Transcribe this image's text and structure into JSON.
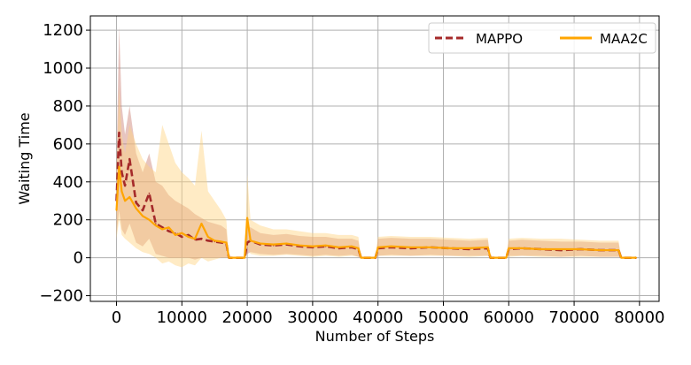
{
  "chart_data": {
    "type": "line",
    "title": "",
    "xlabel": "Number of Steps",
    "ylabel": "Waiting Time",
    "xlim": [
      -4000,
      83000
    ],
    "ylim": [
      -230,
      1275
    ],
    "x_ticks": [
      0,
      10000,
      20000,
      30000,
      40000,
      50000,
      60000,
      70000,
      80000
    ],
    "x_tick_labels": [
      "0",
      "10000",
      "20000",
      "30000",
      "40000",
      "50000",
      "60000",
      "70000",
      "80000"
    ],
    "y_ticks": [
      -200,
      0,
      200,
      400,
      600,
      800,
      1000,
      1200
    ],
    "y_tick_labels": [
      "−200",
      "0",
      "200",
      "400",
      "600",
      "800",
      "1000",
      "1200"
    ],
    "grid": true,
    "legend_position": "top-right",
    "legend_columns": 2,
    "series": [
      {
        "name": "MAPPO",
        "color": "#a52a2a",
        "band_color": "#c97f73",
        "style": "dashed",
        "x": [
          0,
          400,
          800,
          1300,
          2000,
          3000,
          4000,
          5000,
          6000,
          7000,
          8000,
          9000,
          10000,
          11000,
          12000,
          13000,
          14000,
          15000,
          16000,
          16800,
          17200,
          19600,
          20000,
          20500,
          22000,
          24000,
          26000,
          28000,
          30000,
          32000,
          34000,
          36000,
          37000,
          37400,
          39600,
          40000,
          42000,
          45000,
          48000,
          51000,
          54000,
          56800,
          57200,
          59600,
          60000,
          62000,
          65000,
          68000,
          71000,
          74000,
          76800,
          77200,
          79500
        ],
        "y": [
          300,
          660,
          450,
          380,
          520,
          290,
          250,
          340,
          180,
          160,
          140,
          130,
          110,
          120,
          95,
          100,
          90,
          85,
          80,
          75,
          0,
          0,
          80,
          90,
          70,
          65,
          70,
          60,
          55,
          60,
          50,
          55,
          45,
          0,
          0,
          50,
          55,
          50,
          55,
          50,
          45,
          50,
          0,
          0,
          45,
          50,
          45,
          40,
          45,
          40,
          40,
          0,
          0
        ],
        "upper": [
          500,
          1220,
          800,
          650,
          800,
          550,
          450,
          550,
          400,
          380,
          330,
          300,
          280,
          260,
          230,
          210,
          190,
          180,
          170,
          150,
          0,
          0,
          160,
          160,
          130,
          120,
          125,
          115,
          110,
          110,
          100,
          100,
          90,
          0,
          0,
          100,
          105,
          100,
          100,
          95,
          90,
          95,
          0,
          0,
          90,
          95,
          90,
          85,
          85,
          80,
          80,
          0,
          0
        ],
        "lower": [
          120,
          250,
          150,
          120,
          180,
          80,
          60,
          100,
          20,
          10,
          0,
          0,
          0,
          0,
          -10,
          0,
          0,
          0,
          0,
          0,
          0,
          0,
          20,
          30,
          20,
          15,
          20,
          15,
          10,
          15,
          10,
          15,
          5,
          0,
          0,
          10,
          15,
          10,
          15,
          10,
          10,
          10,
          0,
          0,
          10,
          10,
          10,
          5,
          10,
          5,
          5,
          0,
          0
        ]
      },
      {
        "name": "MAA2C",
        "color": "#ffa500",
        "band_color": "#ffd27f",
        "style": "solid",
        "x": [
          0,
          400,
          800,
          1300,
          2000,
          3000,
          4000,
          5000,
          6000,
          7000,
          8000,
          9000,
          10000,
          11000,
          12000,
          13000,
          14000,
          15000,
          16000,
          16800,
          17200,
          19600,
          20000,
          20500,
          22000,
          24000,
          26000,
          28000,
          30000,
          32000,
          34000,
          36000,
          37000,
          37400,
          39600,
          40000,
          42000,
          45000,
          48000,
          51000,
          54000,
          56800,
          57200,
          59600,
          60000,
          62000,
          65000,
          68000,
          71000,
          74000,
          76800,
          77200,
          79500
        ],
        "y": [
          250,
          480,
          350,
          300,
          320,
          260,
          220,
          200,
          170,
          150,
          160,
          120,
          130,
          110,
          100,
          180,
          110,
          90,
          85,
          80,
          0,
          0,
          210,
          90,
          75,
          70,
          75,
          65,
          60,
          65,
          55,
          60,
          50,
          0,
          0,
          55,
          60,
          55,
          55,
          50,
          50,
          55,
          0,
          0,
          50,
          50,
          45,
          45,
          45,
          40,
          40,
          0,
          0
        ],
        "upper": [
          450,
          900,
          650,
          550,
          700,
          600,
          520,
          480,
          450,
          700,
          600,
          500,
          450,
          420,
          380,
          670,
          350,
          300,
          250,
          200,
          0,
          0,
          440,
          200,
          170,
          150,
          150,
          140,
          130,
          130,
          120,
          120,
          110,
          0,
          0,
          110,
          115,
          110,
          110,
          105,
          100,
          105,
          0,
          0,
          100,
          105,
          100,
          100,
          95,
          90,
          90,
          0,
          0
        ],
        "lower": [
          100,
          200,
          120,
          100,
          80,
          50,
          30,
          20,
          0,
          -30,
          -20,
          -40,
          -50,
          -30,
          -40,
          0,
          -20,
          -10,
          0,
          0,
          0,
          0,
          60,
          20,
          10,
          10,
          15,
          10,
          5,
          10,
          5,
          10,
          5,
          0,
          0,
          10,
          10,
          10,
          10,
          10,
          5,
          10,
          0,
          0,
          5,
          10,
          5,
          5,
          5,
          5,
          5,
          0,
          0
        ]
      }
    ]
  }
}
